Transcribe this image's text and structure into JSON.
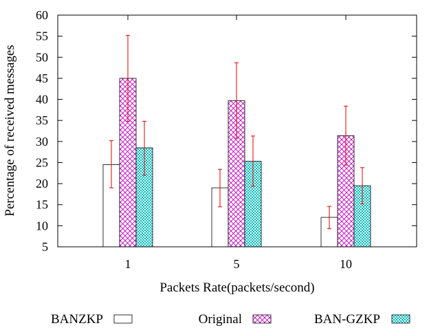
{
  "chart_data": {
    "type": "bar",
    "title": "",
    "xlabel": "Packets Rate(packets/second)",
    "ylabel": "Percentage of received messages",
    "ylim": [
      5,
      60
    ],
    "yticks": [
      5,
      10,
      15,
      20,
      25,
      30,
      35,
      40,
      45,
      50,
      55,
      60
    ],
    "categories": [
      "1",
      "5",
      "10"
    ],
    "legend_position": "bottom",
    "series": [
      {
        "name": "BANZKP",
        "pattern": "plain",
        "color": "#ffffff",
        "values": [
          24.5,
          19.0,
          12.0
        ],
        "error_low": [
          19.0,
          14.5,
          9.3
        ],
        "error_high": [
          30.2,
          23.4,
          14.6
        ]
      },
      {
        "name": "Original",
        "pattern": "crosshatch",
        "color": "#c000c0",
        "values": [
          45.0,
          39.7,
          31.4
        ],
        "error_low": [
          34.8,
          30.8,
          24.4
        ],
        "error_high": [
          55.2,
          48.7,
          38.4
        ]
      },
      {
        "name": "BAN-GZKP",
        "pattern": "dots",
        "color": "#00b8b8",
        "values": [
          28.5,
          25.3,
          19.5
        ],
        "error_low": [
          22.0,
          19.4,
          15.2
        ],
        "error_high": [
          34.8,
          31.3,
          23.8
        ]
      }
    ],
    "error_bar_color": "#dd0000",
    "grid": false
  }
}
